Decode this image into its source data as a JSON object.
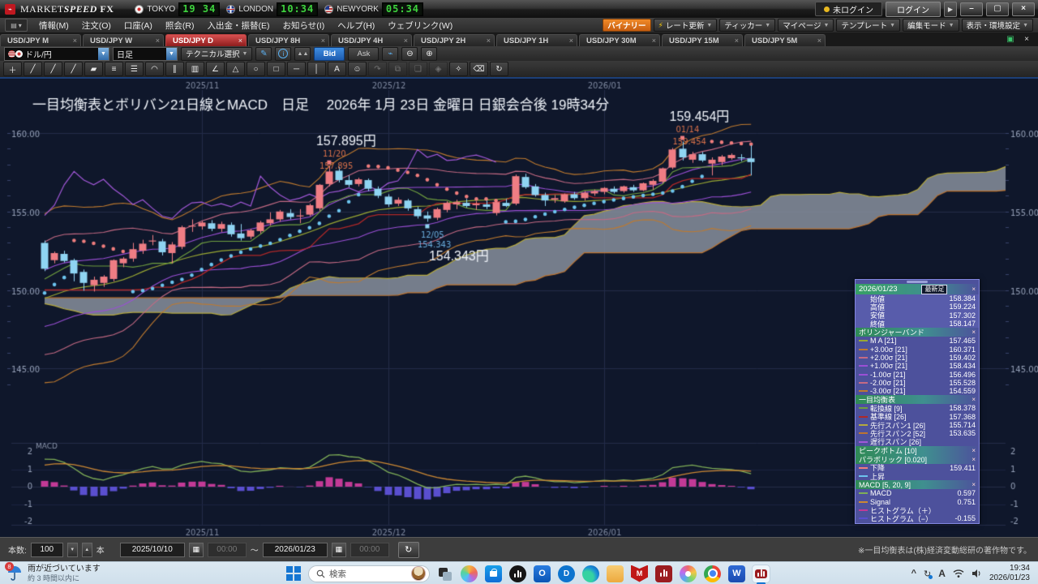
{
  "colors": {
    "chart_bg": "#0f172b",
    "grid": "#232c49",
    "grid_faint": "#1b2340",
    "axis_text": "#96a1b8",
    "candle_up": "#ef7d84",
    "candle_down": "#8fd4f2",
    "boll_ma": "#9aa832",
    "boll_s1": "#9b4fd6",
    "boll_s2": "#c56a84",
    "boll_s3": "#bf7a2e",
    "tenkan": "#6f9e3f",
    "kijun": "#b02828",
    "senkou1": "#b5a93e",
    "senkou2": "#bd7430",
    "cloud": "rgba(132,140,152,0.88)",
    "lagging": "#a258d8",
    "sar_up": "#6cc4ee",
    "sar_down": "#ef7d7d",
    "macd_line": "#7fae57",
    "macd_signal": "#cc8833",
    "hist_pos": "#c23a96",
    "hist_neg": "#5a4fcf",
    "peak_text": "#d9714a",
    "trough_text": "#6aaede",
    "title_text": "#eef2f8"
  },
  "window": {
    "logo_glyph": "M",
    "brand_market": "MARKET",
    "brand_speed": "SPEED",
    "brand_fx": "FX",
    "clocks": [
      {
        "city": "TOKYO",
        "time": "19 34"
      },
      {
        "city": "LONDON",
        "time": "10:34"
      },
      {
        "city": "NEWYORK",
        "time": "05:34"
      }
    ],
    "login_status": "未ログイン",
    "login_button": "ログイン",
    "login_more": "▶",
    "minimize": "–",
    "restore": "▢",
    "close": "×"
  },
  "menubar": {
    "items": [
      "情報(M)",
      "注文(O)",
      "口座(A)",
      "照会(R)",
      "入出金・振替(E)",
      "お知らせ(I)",
      "ヘルプ(H)",
      "ウェブリンク(W)"
    ],
    "right_buttons": [
      {
        "label": "バイナリー",
        "kind": "binary",
        "caret": false,
        "bolt": false
      },
      {
        "label": "レート更新",
        "kind": "rate",
        "caret": true,
        "bolt": true
      },
      {
        "label": "ティッカー",
        "kind": "ticker",
        "caret": true,
        "bolt": false
      },
      {
        "label": "マイページ",
        "kind": "mypage",
        "caret": true,
        "bolt": false
      },
      {
        "label": "テンプレート",
        "kind": "template",
        "caret": true,
        "bolt": false
      },
      {
        "label": "編集モード",
        "kind": "editmode",
        "caret": true,
        "bolt": false
      },
      {
        "label": "表示・環境設定",
        "kind": "settings",
        "caret": true,
        "bolt": false
      }
    ]
  },
  "tabbar": {
    "tabs": [
      {
        "label": "USD/JPY M",
        "active": false
      },
      {
        "label": "USD/JPY W",
        "active": false
      },
      {
        "label": "USD/JPY D",
        "active": true
      },
      {
        "label": "USD/JPY 8H",
        "active": false
      },
      {
        "label": "USD/JPY 4H",
        "active": false
      },
      {
        "label": "USD/JPY 2H",
        "active": false
      },
      {
        "label": "USD/JPY 1H",
        "active": false
      },
      {
        "label": "USD/JPY 30M",
        "active": false
      },
      {
        "label": "USD/JPY 15M",
        "active": false
      },
      {
        "label": "USD/JPY 5M",
        "active": false
      }
    ],
    "close_glyph": "×",
    "maximize_glyph": "▣",
    "closeall_glyph": "×"
  },
  "toolbar": {
    "pair": "ドル/円",
    "timeframe": "日足",
    "technical_select": "テクニカル選択",
    "bid": "Bid",
    "ask": "Ask",
    "pencil": "✎",
    "info": "i",
    "area": "▲▲",
    "chart_type": "⌁",
    "zoom_out": "⊖",
    "zoom_in": "⊕"
  },
  "drawbar": {
    "tools": [
      {
        "name": "crosshair-tool",
        "glyph": "＋",
        "enabled": true
      },
      {
        "name": "trendline-tool",
        "glyph": "╱",
        "enabled": true
      },
      {
        "name": "ray-tool",
        "glyph": "╱",
        "enabled": true
      },
      {
        "name": "extended-line-tool",
        "glyph": "╱",
        "enabled": true
      },
      {
        "name": "brush-tool",
        "glyph": "▰",
        "enabled": true
      },
      {
        "name": "horizontal-lines-tool",
        "glyph": "≡",
        "enabled": true
      },
      {
        "name": "grid-lines-tool",
        "glyph": "☰",
        "enabled": true
      },
      {
        "name": "arc-tool",
        "glyph": "◠",
        "enabled": true
      },
      {
        "name": "fan-lines-tool",
        "glyph": "∥",
        "enabled": true
      },
      {
        "name": "gann-tool",
        "glyph": "▥",
        "enabled": true
      },
      {
        "name": "angle-tool",
        "glyph": "∠",
        "enabled": true
      },
      {
        "name": "polygon-tool",
        "glyph": "△",
        "enabled": true
      },
      {
        "name": "ellipse-tool",
        "glyph": "○",
        "enabled": true
      },
      {
        "name": "rectangle-tool",
        "glyph": "□",
        "enabled": true
      },
      {
        "name": "horizontal-line-tool",
        "glyph": "─",
        "enabled": true
      },
      {
        "name": "vertical-line-tool",
        "glyph": "│",
        "enabled": true
      },
      {
        "name": "text-tool",
        "glyph": "A",
        "enabled": true
      },
      {
        "name": "marker-tool",
        "glyph": "☺",
        "enabled": true
      },
      {
        "name": "move-tool",
        "glyph": "↷",
        "enabled": false
      },
      {
        "name": "copy-tool",
        "glyph": "⧉",
        "enabled": false
      },
      {
        "name": "paste-tool",
        "glyph": "❏",
        "enabled": false
      },
      {
        "name": "group-tool",
        "glyph": "◈",
        "enabled": false
      },
      {
        "name": "settings-tool",
        "glyph": "✧",
        "enabled": true
      },
      {
        "name": "eraser-tool",
        "glyph": "⌫",
        "enabled": true
      },
      {
        "name": "delete-all-tool",
        "glyph": "↻",
        "enabled": true
      }
    ]
  },
  "chart": {
    "title": "一目均衡表とボリバン21日線とMACD　日足　 2026年 1月 23日 金曜日 日銀会合後 19時34分",
    "macd_label": "MACD",
    "y_axis_labels": [
      "160.00",
      "155.00",
      "150.00",
      "145.00"
    ]
  },
  "chart_data": {
    "type": "candlestick",
    "symbol": "USD/JPY",
    "timeframe": "daily",
    "visible_range": {
      "from": "2025/10/10",
      "to": "2026/01/23"
    },
    "y_axis": {
      "ticks": [
        145,
        150,
        155,
        160
      ],
      "unit": "円"
    },
    "x_gridlines": [
      {
        "label": "2025/11",
        "bar": 16
      },
      {
        "label": "2025/12",
        "bar": 35
      },
      {
        "label": "2026/01",
        "bar": 57
      }
    ],
    "dates": [
      "10/10",
      "10/13",
      "10/14",
      "10/15",
      "10/16",
      "10/17",
      "10/20",
      "10/21",
      "10/22",
      "10/23",
      "10/24",
      "10/27",
      "10/28",
      "10/29",
      "10/30",
      "10/31",
      "11/03",
      "11/04",
      "11/05",
      "11/06",
      "11/07",
      "11/10",
      "11/11",
      "11/12",
      "11/13",
      "11/14",
      "11/17",
      "11/18",
      "11/19",
      "11/20",
      "11/21",
      "11/25",
      "11/26",
      "11/27",
      "11/28",
      "12/01",
      "12/02",
      "12/03",
      "12/04",
      "12/05",
      "12/08",
      "12/09",
      "12/10",
      "12/11",
      "12/12",
      "12/15",
      "12/16",
      "12/17",
      "12/18",
      "12/19",
      "12/22",
      "12/23",
      "12/24",
      "12/26",
      "12/29",
      "12/30",
      "12/31",
      "01/02",
      "01/05",
      "01/06",
      "01/07",
      "01/08",
      "01/09",
      "01/12",
      "01/13",
      "01/14",
      "01/15",
      "01/16",
      "01/19",
      "01/20",
      "01/21",
      "01/22",
      "01/23"
    ],
    "open": [
      153.0,
      151.9,
      152.3,
      151.9,
      151.15,
      150.3,
      150.45,
      150.7,
      151.7,
      152.0,
      152.5,
      153.1,
      153.1,
      152.35,
      152.75,
      154.05,
      154.05,
      154.25,
      153.9,
      154.15,
      153.6,
      153.4,
      153.75,
      154.25,
      154.5,
      154.9,
      154.7,
      154.8,
      155.2,
      156.75,
      157.6,
      157.0,
      156.75,
      157.0,
      156.45,
      155.95,
      155.5,
      155.7,
      155.15,
      154.75,
      154.6,
      155.1,
      155.45,
      155.55,
      155.4,
      155.45,
      154.9,
      155.55,
      155.5,
      157.2,
      156.6,
      156.05,
      155.75,
      155.65,
      156.1,
      155.85,
      156.15,
      156.25,
      156.45,
      156.3,
      156.55,
      156.35,
      156.7,
      156.9,
      157.8,
      159.0,
      158.3,
      158.65,
      158.05,
      158.15,
      158.4,
      158.45,
      158.384
    ],
    "high": [
      153.15,
      152.45,
      152.5,
      152.0,
      151.3,
      150.85,
      150.95,
      151.95,
      152.1,
      153.0,
      153.2,
      153.5,
      153.25,
      153.05,
      154.1,
      154.5,
      154.4,
      154.45,
      154.35,
      154.3,
      154.2,
      153.9,
      154.4,
      154.95,
      155.1,
      155.15,
      155.15,
      155.5,
      156.75,
      157.895,
      157.85,
      157.3,
      157.15,
      157.1,
      156.6,
      156.1,
      155.9,
      155.8,
      155.3,
      155.0,
      155.25,
      155.65,
      155.75,
      155.8,
      155.65,
      155.7,
      155.7,
      155.8,
      157.35,
      157.4,
      156.75,
      156.2,
      156.05,
      156.15,
      156.25,
      156.3,
      156.4,
      156.55,
      156.6,
      156.65,
      156.7,
      156.85,
      157.05,
      157.8,
      159.05,
      159.454,
      158.8,
      158.8,
      158.45,
      158.6,
      158.7,
      158.65,
      159.224
    ],
    "low": [
      151.2,
      151.7,
      151.75,
      150.55,
      149.95,
      149.9,
      150.2,
      150.55,
      151.45,
      151.8,
      152.3,
      152.85,
      152.2,
      151.7,
      152.6,
      153.7,
      153.85,
      153.75,
      153.7,
      153.4,
      153.15,
      153.25,
      153.6,
      154.1,
      154.35,
      154.5,
      154.25,
      154.7,
      155.05,
      156.6,
      156.85,
      156.55,
      156.6,
      156.3,
      155.85,
      155.3,
      155.35,
      155.05,
      154.55,
      154.343,
      154.45,
      154.95,
      155.15,
      155.25,
      155.1,
      155.15,
      154.75,
      155.28,
      155.4,
      156.45,
      155.95,
      155.35,
      155.55,
      155.55,
      155.75,
      155.7,
      156.0,
      156.1,
      156.15,
      156.2,
      156.25,
      156.3,
      156.4,
      156.8,
      157.7,
      158.25,
      158.1,
      158.15,
      157.3,
      157.95,
      158.3,
      158.2,
      157.302
    ],
    "close": [
      151.35,
      152.35,
      151.85,
      151.05,
      150.45,
      150.65,
      150.85,
      151.9,
      152.0,
      152.6,
      152.95,
      153.15,
      152.4,
      152.9,
      154.0,
      154.1,
      154.3,
      153.9,
      154.2,
      153.55,
      153.3,
      153.8,
      154.3,
      154.5,
      155.0,
      154.65,
      154.75,
      155.4,
      156.7,
      157.55,
      157.0,
      156.7,
      157.05,
      156.45,
      156.0,
      155.45,
      155.75,
      155.2,
      154.7,
      154.55,
      155.15,
      155.55,
      155.6,
      155.35,
      155.5,
      155.3,
      155.6,
      155.35,
      157.25,
      156.55,
      156.05,
      155.7,
      155.85,
      156.1,
      155.85,
      156.2,
      156.3,
      156.5,
      156.25,
      156.6,
      156.35,
      156.8,
      156.95,
      157.75,
      158.95,
      158.45,
      158.65,
      158.25,
      158.3,
      158.5,
      158.6,
      158.4,
      158.147
    ],
    "prehistory_close": [
      149.5,
      150.2,
      150.9,
      151.6,
      152.2,
      152.5,
      152.1,
      151.4,
      150.6,
      149.8,
      149.0,
      148.2,
      147.5,
      146.9,
      146.8,
      147.3,
      148.1,
      148.9,
      149.7,
      150.4,
      151.0,
      150.5,
      149.7,
      148.8,
      148.0,
      147.3,
      146.7,
      146.5,
      147.0,
      147.8,
      148.5,
      149.2,
      149.6,
      149.1,
      148.4,
      147.7,
      147.2,
      147.5,
      148.2,
      148.9,
      149.4,
      149.0,
      148.3,
      147.6,
      147.2,
      147.8,
      148.6,
      149.3,
      150.0,
      150.6,
      151.2,
      151.7,
      152.1,
      152.4,
      152.8
    ],
    "indicators": {
      "bollinger": {
        "period": 21,
        "sigmas": [
          1,
          2,
          3
        ]
      },
      "ichimoku": {
        "tenkan": 9,
        "kijun": 26,
        "senkou2": 52,
        "shift": 26
      },
      "parabolic": {
        "af_step": 0.02,
        "af_max": 0.2
      },
      "macd": {
        "fast": 5,
        "slow": 20,
        "signal": 9,
        "ticks": [
          "2",
          "1",
          "0",
          "-1",
          "-2"
        ]
      }
    },
    "annotations": [
      {
        "kind": "peak",
        "bar": 29,
        "price": 157.895,
        "big_label": "157.895円",
        "date_label": "11/20",
        "value_label": "157.895"
      },
      {
        "kind": "peak",
        "bar": 65,
        "price": 159.454,
        "big_label": "159.454円",
        "date_label": "01/14",
        "value_label": "159.454"
      },
      {
        "kind": "trough",
        "bar": 39,
        "price": 154.343,
        "big_label": "154.343円",
        "date_label": "12/05",
        "value_label": "154.343"
      }
    ],
    "latest_ohlc": {
      "open": 158.384,
      "high": 159.224,
      "low": 157.302,
      "close": 158.147
    }
  },
  "info_panel": {
    "title": {
      "date": "2026/01/23",
      "badge": "最新足",
      "close": "×"
    },
    "price_rows": [
      {
        "label": "始値",
        "value": "158.384"
      },
      {
        "label": "高値",
        "value": "159.224"
      },
      {
        "label": "安値",
        "value": "157.302"
      },
      {
        "label": "終値",
        "value": "158.147"
      }
    ],
    "sections": [
      {
        "header": "ボリンジャーバンド",
        "rows": [
          {
            "label": "M A [21]",
            "value": "157.465",
            "color": "#9aa832"
          },
          {
            "label": "+3.00σ [21]",
            "value": "160.371",
            "color": "#bf7a2e"
          },
          {
            "label": "+2.00σ [21]",
            "value": "159.402",
            "color": "#c56a84"
          },
          {
            "label": "+1.00σ [21]",
            "value": "158.434",
            "color": "#9b4fd6"
          },
          {
            "label": "-1.00σ [21]",
            "value": "156.496",
            "color": "#9b4fd6"
          },
          {
            "label": "-2.00σ [21]",
            "value": "155.528",
            "color": "#c56a84"
          },
          {
            "label": "-3.00σ [21]",
            "value": "154.559",
            "color": "#bf7a2e"
          }
        ]
      },
      {
        "header": "一目均衡表",
        "rows": [
          {
            "label": "転換線 [9]",
            "value": "158.378",
            "color": "#6f9e3f"
          },
          {
            "label": "基準線 [26]",
            "value": "157.368",
            "color": "#b02828"
          },
          {
            "label": "先行スパン1 [26]",
            "value": "155.714",
            "color": "#b5a93e"
          },
          {
            "label": "先行スパン2 [52]",
            "value": "153.635",
            "color": "#bd7430"
          },
          {
            "label": "遅行スパン [26]",
            "value": "",
            "color": "#a258d8"
          }
        ]
      },
      {
        "header": "ピークボトム [10]",
        "rows": []
      },
      {
        "header": "パラボリック [0.020]",
        "rows": [
          {
            "label": "下降",
            "value": "159.411",
            "color": "#ef7d7d"
          },
          {
            "label": "上昇",
            "value": "",
            "color": "#6cc4ee"
          }
        ]
      },
      {
        "header": "MACD [5, 20, 9]",
        "rows": [
          {
            "label": "MACD",
            "value": "0.597",
            "color": "#7fae57"
          },
          {
            "label": "Signal",
            "value": "0.751",
            "color": "#cc8833"
          },
          {
            "label": "ヒストグラム（＋）",
            "value": "",
            "color": "#c23a96"
          },
          {
            "label": "ヒストグラム（−）",
            "value": "-0.155",
            "color": "#5a4fcf"
          }
        ]
      }
    ]
  },
  "controls": {
    "count_label": "本数:",
    "count": "100",
    "unit": "本",
    "from_date": "2025/10/10",
    "from_time": "00:00",
    "tilde": "～",
    "to_date": "2026/01/23",
    "to_time": "00:00",
    "note": "※一目均衡表は(株)経済変動総研の著作物です。"
  },
  "taskbar": {
    "weather": {
      "badge": "8",
      "line1": "雨が近づいています",
      "line2": "約 3 時間以内に"
    },
    "search_placeholder": "検索",
    "icons": [
      "task-view",
      "copilot",
      "microsoft-store",
      "audio-app",
      "outlook",
      "dell",
      "edge",
      "file-explorer",
      "mcafee",
      "marketspeed",
      "paint",
      "chrome",
      "word",
      "marketspeed-fx-active"
    ],
    "tray": {
      "ime": "A"
    },
    "clock": {
      "time": "19:34",
      "date": "2026/01/23"
    }
  }
}
